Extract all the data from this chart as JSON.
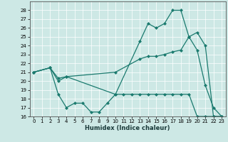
{
  "xlabel": "Humidex (Indice chaleur)",
  "xlim": [
    -0.5,
    23.5
  ],
  "ylim": [
    16,
    29
  ],
  "yticks": [
    16,
    17,
    18,
    19,
    20,
    21,
    22,
    23,
    24,
    25,
    26,
    27,
    28
  ],
  "xticks": [
    0,
    1,
    2,
    3,
    4,
    5,
    6,
    7,
    8,
    9,
    10,
    11,
    12,
    13,
    14,
    15,
    16,
    17,
    18,
    19,
    20,
    21,
    22,
    23
  ],
  "bg_color": "#cde8e5",
  "line_color": "#1a7a6e",
  "line1_x": [
    0,
    2,
    3,
    4,
    10,
    13,
    14,
    15,
    16,
    17,
    18,
    19,
    20,
    21,
    22,
    23
  ],
  "line1_y": [
    21.0,
    21.5,
    20.0,
    20.5,
    18.5,
    24.5,
    26.5,
    26.0,
    26.5,
    28.0,
    28.0,
    25.0,
    23.5,
    19.5,
    17.0,
    16.0
  ],
  "line2_x": [
    0,
    2,
    3,
    4,
    10,
    13,
    14,
    15,
    16,
    17,
    18,
    19,
    20,
    21,
    22,
    23
  ],
  "line2_y": [
    21.0,
    21.5,
    20.3,
    20.5,
    21.0,
    22.5,
    22.8,
    22.8,
    23.0,
    23.3,
    23.5,
    25.0,
    25.5,
    24.0,
    16.0,
    16.0
  ],
  "line3_x": [
    0,
    2,
    3,
    4,
    5,
    6,
    7,
    8,
    9,
    10,
    11,
    12,
    13,
    14,
    15,
    16,
    17,
    18,
    19,
    20,
    21,
    22,
    23
  ],
  "line3_y": [
    21.0,
    21.5,
    18.5,
    17.0,
    17.5,
    17.5,
    16.5,
    16.5,
    17.5,
    18.5,
    18.5,
    18.5,
    18.5,
    18.5,
    18.5,
    18.5,
    18.5,
    18.5,
    18.5,
    16.0,
    16.0,
    16.0,
    16.0
  ]
}
